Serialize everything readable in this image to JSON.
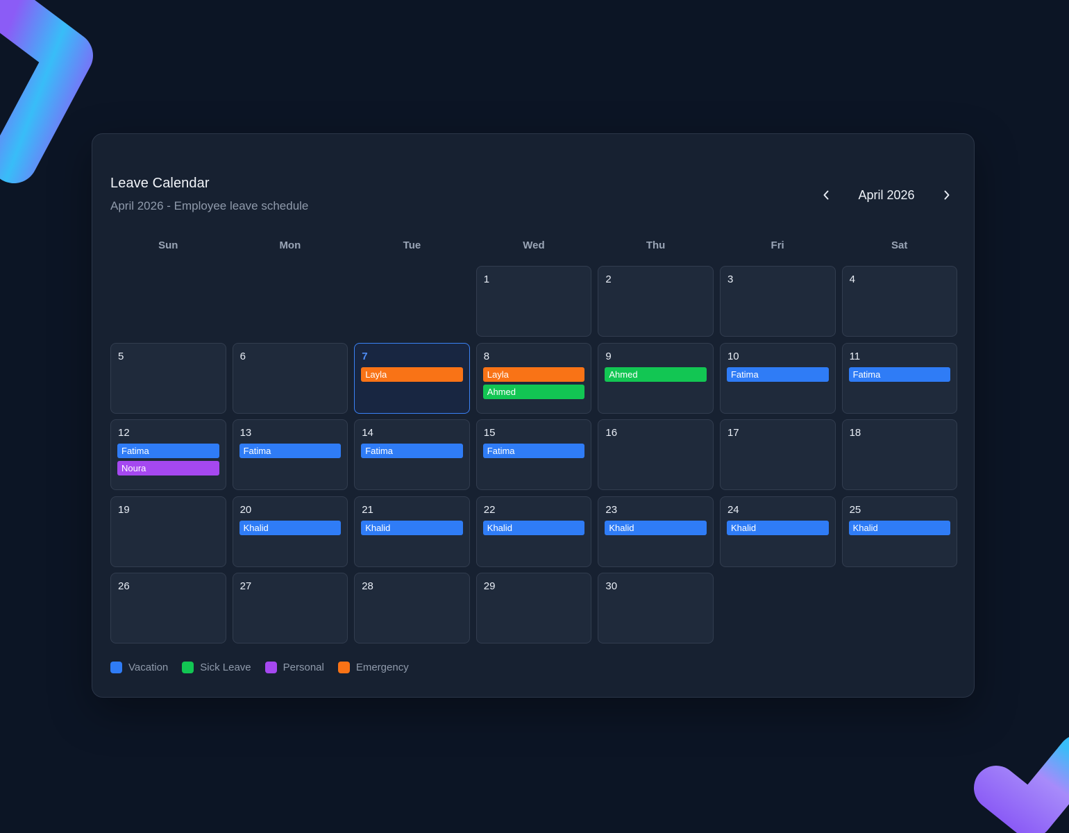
{
  "header": {
    "title": "Leave Calendar",
    "subtitle": "April 2026 - Employee leave schedule"
  },
  "nav": {
    "month_label": "April 2026",
    "prev_icon": "chevron-left-icon",
    "next_icon": "chevron-right-icon"
  },
  "colors": {
    "background": "#0c1525",
    "card": "#172131",
    "vacation": "#2f7cf6",
    "sick": "#12c653",
    "personal": "#a548f0",
    "emergency": "#f97316",
    "today_border": "#3b82f6"
  },
  "weekdays": [
    "Sun",
    "Mon",
    "Tue",
    "Wed",
    "Thu",
    "Fri",
    "Sat"
  ],
  "calendar": {
    "leading_blank_days": 3,
    "today": 7,
    "days": [
      {
        "num": "1",
        "events": []
      },
      {
        "num": "2",
        "events": []
      },
      {
        "num": "3",
        "events": []
      },
      {
        "num": "4",
        "events": []
      },
      {
        "num": "5",
        "events": []
      },
      {
        "num": "6",
        "events": []
      },
      {
        "num": "7",
        "events": [
          {
            "name": "Layla",
            "type": "emergency"
          }
        ]
      },
      {
        "num": "8",
        "events": [
          {
            "name": "Layla",
            "type": "emergency"
          },
          {
            "name": "Ahmed",
            "type": "sick"
          }
        ]
      },
      {
        "num": "9",
        "events": [
          {
            "name": "Ahmed",
            "type": "sick"
          }
        ]
      },
      {
        "num": "10",
        "events": [
          {
            "name": "Fatima",
            "type": "vacation"
          }
        ]
      },
      {
        "num": "11",
        "events": [
          {
            "name": "Fatima",
            "type": "vacation"
          }
        ]
      },
      {
        "num": "12",
        "events": [
          {
            "name": "Fatima",
            "type": "vacation"
          },
          {
            "name": "Noura",
            "type": "personal"
          }
        ]
      },
      {
        "num": "13",
        "events": [
          {
            "name": "Fatima",
            "type": "vacation"
          }
        ]
      },
      {
        "num": "14",
        "events": [
          {
            "name": "Fatima",
            "type": "vacation"
          }
        ]
      },
      {
        "num": "15",
        "events": [
          {
            "name": "Fatima",
            "type": "vacation"
          }
        ]
      },
      {
        "num": "16",
        "events": []
      },
      {
        "num": "17",
        "events": []
      },
      {
        "num": "18",
        "events": []
      },
      {
        "num": "19",
        "events": []
      },
      {
        "num": "20",
        "events": [
          {
            "name": "Khalid",
            "type": "vacation"
          }
        ]
      },
      {
        "num": "21",
        "events": [
          {
            "name": "Khalid",
            "type": "vacation"
          }
        ]
      },
      {
        "num": "22",
        "events": [
          {
            "name": "Khalid",
            "type": "vacation"
          }
        ]
      },
      {
        "num": "23",
        "events": [
          {
            "name": "Khalid",
            "type": "vacation"
          }
        ]
      },
      {
        "num": "24",
        "events": [
          {
            "name": "Khalid",
            "type": "vacation"
          }
        ]
      },
      {
        "num": "25",
        "events": [
          {
            "name": "Khalid",
            "type": "vacation"
          }
        ]
      },
      {
        "num": "26",
        "events": []
      },
      {
        "num": "27",
        "events": []
      },
      {
        "num": "28",
        "events": []
      },
      {
        "num": "29",
        "events": []
      },
      {
        "num": "30",
        "events": []
      }
    ]
  },
  "legend": [
    {
      "label": "Vacation",
      "type": "vacation"
    },
    {
      "label": "Sick Leave",
      "type": "sick"
    },
    {
      "label": "Personal",
      "type": "personal"
    },
    {
      "label": "Emergency",
      "type": "emergency"
    }
  ]
}
